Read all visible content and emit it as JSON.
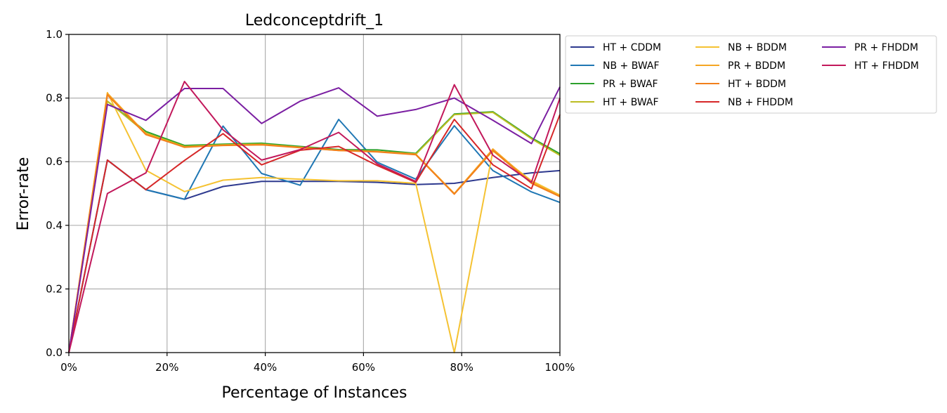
{
  "chart_data": {
    "type": "line",
    "title": "Ledconceptdrift_1",
    "xlabel": "Percentage of Instances",
    "ylabel": "Error-rate",
    "xlim": [
      0,
      100
    ],
    "ylim": [
      0,
      1.0
    ],
    "x_ticks": [
      "0%",
      "20%",
      "40%",
      "60%",
      "80%",
      "100%"
    ],
    "y_ticks": [
      "0.0",
      "0.2",
      "0.4",
      "0.6",
      "0.8",
      "1.0"
    ],
    "grid": true,
    "legend_position": "outside-right-top",
    "x": [
      0,
      7.85,
      15.7,
      23.55,
      31.4,
      39.25,
      47.1,
      54.95,
      62.8,
      70.65,
      78.5,
      86.35,
      94.2,
      100
    ],
    "series": [
      {
        "name": "HT + CDDM",
        "color": "#2e3a8f",
        "values": [
          0.0,
          0.605,
          0.512,
          0.482,
          0.522,
          0.538,
          0.538,
          0.538,
          0.535,
          0.528,
          0.532,
          0.55,
          0.565,
          0.572
        ]
      },
      {
        "name": "NB + BWAF",
        "color": "#1f77b4",
        "values": [
          0.0,
          0.605,
          0.512,
          0.482,
          0.712,
          0.563,
          0.526,
          0.733,
          0.598,
          0.545,
          0.713,
          0.572,
          0.505,
          0.472
        ]
      },
      {
        "name": "PR + BWAF",
        "color": "#2ca02c",
        "values": [
          0.0,
          0.79,
          0.695,
          0.651,
          0.655,
          0.658,
          0.648,
          0.638,
          0.637,
          0.626,
          0.75,
          0.757,
          0.675,
          0.625
        ]
      },
      {
        "name": "HT + BWAF",
        "color": "#bcbd22",
        "values": [
          0.0,
          0.79,
          0.69,
          0.648,
          0.653,
          0.655,
          0.645,
          0.635,
          0.632,
          0.623,
          0.748,
          0.755,
          0.672,
          0.62
        ]
      },
      {
        "name": "NB + BDDM",
        "color": "#f5c232",
        "values": [
          0.0,
          0.817,
          0.573,
          0.506,
          0.542,
          0.55,
          0.545,
          0.54,
          0.54,
          0.532,
          0.0,
          0.634,
          0.54,
          0.495
        ]
      },
      {
        "name": "PR + BDDM",
        "color": "#f5a623",
        "values": [
          0.0,
          0.815,
          0.688,
          0.645,
          0.652,
          0.654,
          0.645,
          0.636,
          0.632,
          0.624,
          0.5,
          0.64,
          0.535,
          0.493
        ]
      },
      {
        "name": "HT + BDDM",
        "color": "#f27f1b",
        "values": [
          0.0,
          0.81,
          0.685,
          0.646,
          0.651,
          0.653,
          0.644,
          0.635,
          0.631,
          0.622,
          0.498,
          0.635,
          0.532,
          0.49
        ]
      },
      {
        "name": "NB + FHDDM",
        "color": "#d62728",
        "values": [
          0.0,
          0.605,
          0.512,
          0.604,
          0.688,
          0.59,
          0.636,
          0.648,
          0.588,
          0.535,
          0.733,
          0.59,
          0.515,
          0.748
        ]
      },
      {
        "name": "PR + FHDDM",
        "color": "#7b1fa2",
        "values": [
          0.0,
          0.78,
          0.73,
          0.83,
          0.83,
          0.72,
          0.79,
          0.832,
          0.743,
          0.764,
          0.8,
          0.73,
          0.657,
          0.835
        ]
      },
      {
        "name": "HT + FHDDM",
        "color": "#c2185b",
        "values": [
          0.0,
          0.5,
          0.565,
          0.852,
          0.7,
          0.605,
          0.638,
          0.692,
          0.593,
          0.538,
          0.842,
          0.62,
          0.535,
          0.8
        ]
      }
    ]
  }
}
